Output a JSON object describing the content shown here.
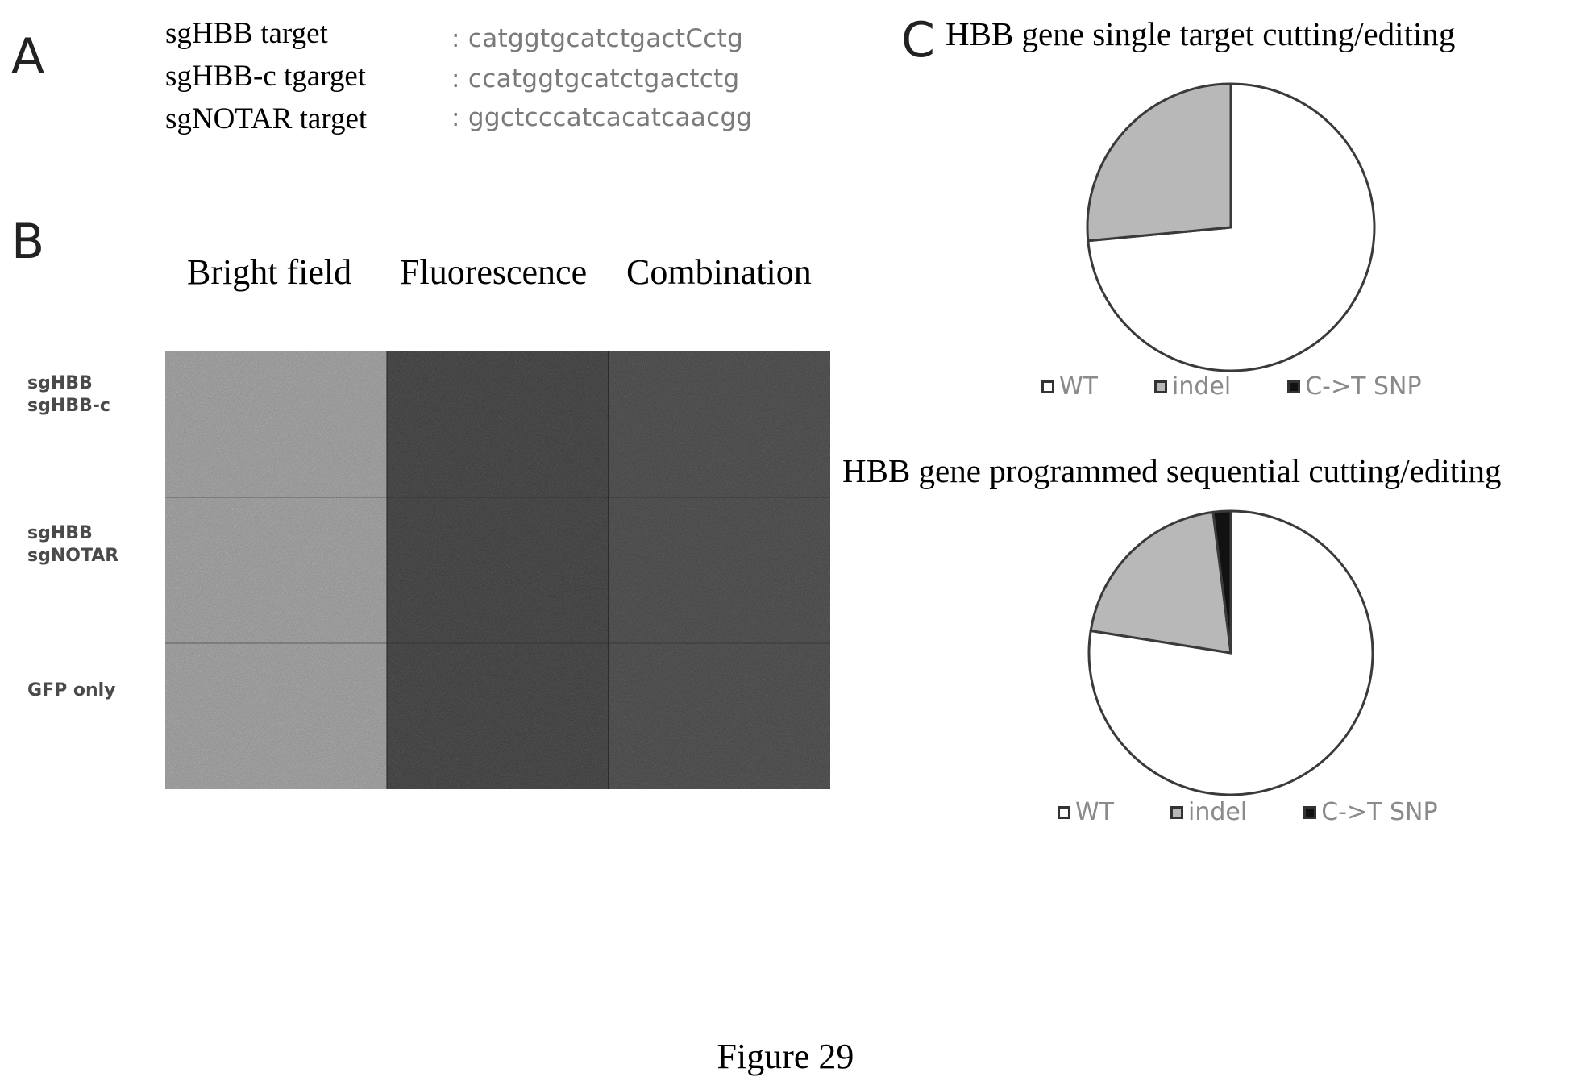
{
  "panels": {
    "a": "A",
    "b": "B",
    "c": "C"
  },
  "targets": [
    {
      "name": "sgHBB target",
      "sequence": ": catggtgcatctgactCctg"
    },
    {
      "name": "sgHBB-c tgarget",
      "sequence": ": ccatggtgcatctgactctg"
    },
    {
      "name": "sgNOTAR target",
      "sequence": ": ggctcccatcacatcaacgg"
    }
  ],
  "microscopy": {
    "columns": [
      "Bright field",
      "Fluorescence",
      "Combination"
    ],
    "rows": [
      {
        "line1": "sgHBB",
        "line2": "sgHBB-c"
      },
      {
        "line1": "sgHBB",
        "line2": "sgNOTAR"
      },
      {
        "line1": "GFP only",
        "line2": ""
      }
    ]
  },
  "colors": {
    "wt": "#ffffff",
    "indel": "#b8b8b8",
    "snp": "#111111",
    "outline": "#3a3a3a"
  },
  "chart_data": [
    {
      "type": "pie",
      "title": "HBB gene single target cutting/editing",
      "categories": [
        "WT",
        "indel",
        "C->T SNP"
      ],
      "values": [
        73.5,
        26.5,
        0
      ],
      "legend_position": "bottom"
    },
    {
      "type": "pie",
      "title": "HBB gene programmed sequential cutting/editing",
      "categories": [
        "WT",
        "indel",
        "C->T SNP"
      ],
      "values": [
        77.5,
        20.5,
        2.0
      ],
      "legend_position": "bottom"
    }
  ],
  "caption": "Figure 29"
}
